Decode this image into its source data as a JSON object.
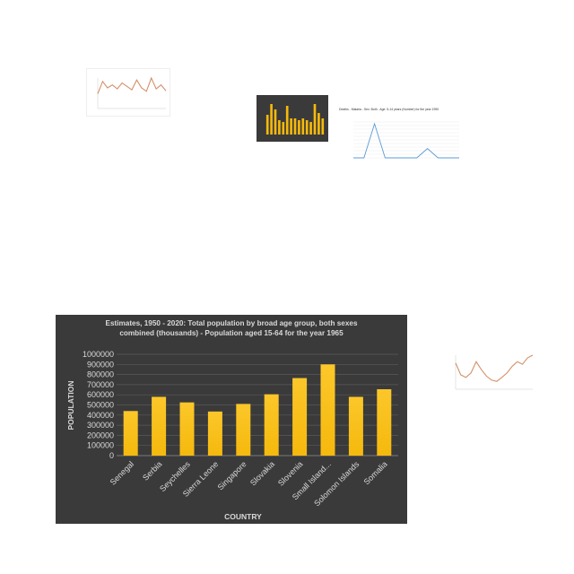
{
  "thumbnails": [
    {
      "type": "line",
      "title": "",
      "series": [
        {
          "values": [
            30,
            55,
            42,
            48,
            40,
            52,
            45,
            38,
            58,
            42,
            35,
            62,
            40,
            48,
            36
          ]
        }
      ]
    },
    {
      "type": "bar",
      "title": "",
      "series": [
        {
          "values": [
            55,
            85,
            70,
            40,
            35,
            80,
            45,
            45,
            40,
            45,
            40,
            35,
            85,
            60,
            45
          ]
        }
      ]
    },
    {
      "type": "line",
      "title": "Deaths - Malaria - Sex: Both - Age: 5-14 years (Number) for the year 1990",
      "series": [
        {
          "values": [
            0,
            0,
            950,
            0,
            0,
            0,
            0,
            260,
            0,
            0,
            0
          ]
        }
      ]
    },
    {
      "type": "line",
      "title": "",
      "series": [
        {
          "values": [
            70,
            52,
            48,
            55,
            72,
            60,
            50,
            44,
            42,
            48,
            55,
            65,
            72,
            68,
            78,
            82
          ]
        }
      ]
    }
  ],
  "chart_data": {
    "type": "bar",
    "title": "Estimates, 1950 - 2020: Total population by broad age group, both sexes combined (thousands) - Population aged 15-64 for the year 1965",
    "title_lines": [
      "Estimates, 1950 - 2020: Total population by broad age group, both sexes",
      "combined (thousands) - Population aged 15-64 for the year 1965"
    ],
    "xlabel": "COUNTRY",
    "ylabel": "POPULATION",
    "categories": [
      "Senegal",
      "Serbia",
      "Seychelles",
      "Sierra Leone",
      "Singapore",
      "Slovakia",
      "Slovenia",
      "Small Island...",
      "Solomon Islands",
      "Somalia"
    ],
    "values": [
      440000,
      580000,
      525000,
      435000,
      510000,
      605000,
      765000,
      900000,
      580000,
      655000
    ],
    "ylim": [
      0,
      1000000
    ],
    "yticks": [
      "0",
      "100000",
      "200000",
      "300000",
      "400000",
      "500000",
      "600000",
      "700000",
      "800000",
      "900000",
      "1000000"
    ],
    "grid": true,
    "colors": {
      "bar": "#f5b90d",
      "background": "#3a3a3a",
      "text": "#d9d9d9",
      "grid": "#5a5a5a"
    }
  }
}
